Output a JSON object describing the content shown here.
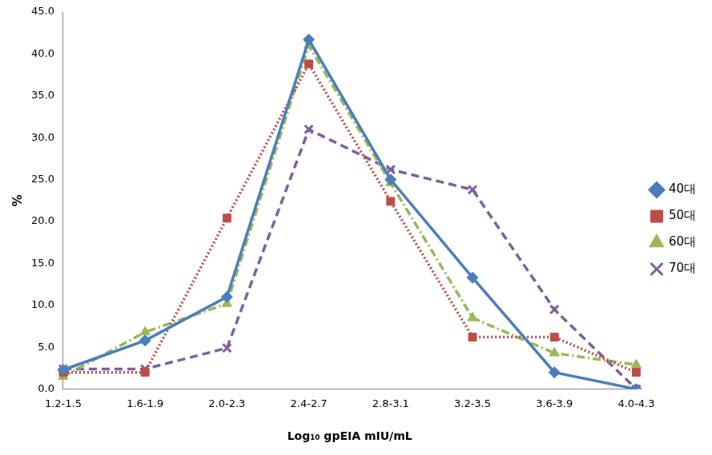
{
  "chart_data": {
    "type": "line",
    "x_label": "Log₁₀ gpEIA mIU/mL",
    "y_label": "%",
    "categories": [
      "1.2-1.5",
      "1.6-1.9",
      "2.0-2.3",
      "2.4-2.7",
      "2.8-3.1",
      "3.2-3.5",
      "3.6-3.9",
      "4.0-4.3"
    ],
    "series": [
      {
        "name": "40대",
        "color": "#4a7ebb",
        "marker": "diamond",
        "line_style": "solid",
        "values": [
          2.3,
          5.8,
          11.0,
          41.7,
          25.0,
          13.3,
          2.0,
          0.0
        ]
      },
      {
        "name": "50대",
        "color": "#be4b48",
        "marker": "square",
        "line_style": "dotted",
        "values": [
          2.0,
          2.0,
          20.4,
          38.8,
          22.4,
          6.2,
          6.2,
          2.0
        ]
      },
      {
        "name": "60대",
        "color": "#98b954",
        "marker": "triangle",
        "line_style": "dashdot",
        "values": [
          1.5,
          6.8,
          10.2,
          41.0,
          24.6,
          8.5,
          4.3,
          2.9
        ]
      },
      {
        "name": "70대",
        "color": "#7d60a0",
        "marker": "x",
        "line_style": "dashed",
        "values": [
          2.4,
          2.4,
          4.9,
          31.0,
          26.2,
          23.8,
          9.5,
          0.0
        ]
      }
    ],
    "ylim": [
      0,
      45
    ],
    "yticks": [
      {
        "value": 0,
        "label": "0.0"
      },
      {
        "value": 5,
        "label": "5.0"
      },
      {
        "value": 10,
        "label": "10.0"
      },
      {
        "value": 15,
        "label": "15.0"
      },
      {
        "value": 20,
        "label": "20.0"
      },
      {
        "value": 25,
        "label": "25.0"
      },
      {
        "value": 30,
        "label": "30.0"
      },
      {
        "value": 35,
        "label": "35.0"
      },
      {
        "value": 40,
        "label": "40.0"
      },
      {
        "value": 45,
        "label": "45.0"
      }
    ],
    "grid": false,
    "legend": "right"
  }
}
